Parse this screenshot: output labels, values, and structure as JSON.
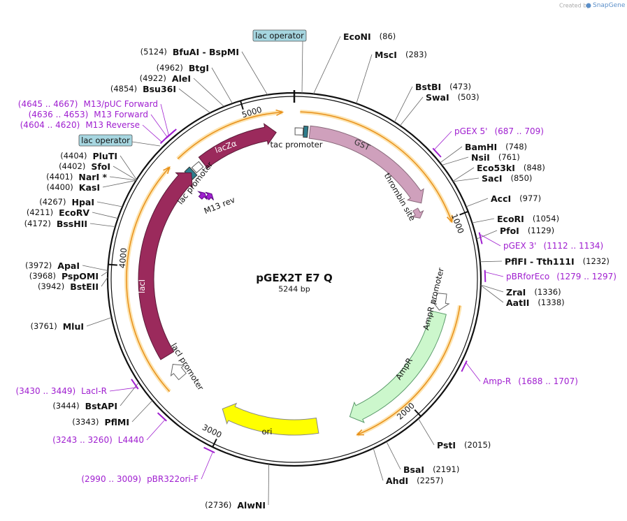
{
  "watermark": {
    "prefix": "Created by",
    "brand": "SnapGene"
  },
  "plasmid": {
    "name": "pGEX2T E7 Q",
    "length": "5244 bp"
  },
  "ruler": {
    "ticks": [
      1000,
      2000,
      3000,
      4000,
      5000
    ]
  },
  "sites": [
    {
      "name": "EcoNI",
      "position": "(86)"
    },
    {
      "name": "MscI",
      "position": "(283)"
    },
    {
      "name": "BstBI",
      "position": "(473)"
    },
    {
      "name": "SwaI",
      "position": "(503)"
    },
    {
      "name": "BamHI",
      "position": "(748)"
    },
    {
      "name": "NsiI",
      "position": "(761)"
    },
    {
      "name": "Eco53kI",
      "position": "(848)"
    },
    {
      "name": "SacI",
      "position": "(850)"
    },
    {
      "name": "AccI",
      "position": "(977)"
    },
    {
      "name": "EcoRI",
      "position": "(1054)"
    },
    {
      "name": "PfoI",
      "position": "(1129)"
    },
    {
      "name": "PflFI - Tth111I",
      "position": "(1232)"
    },
    {
      "name": "ZraI",
      "position": "(1336)"
    },
    {
      "name": "AatII",
      "position": "(1338)"
    },
    {
      "name": "PstI",
      "position": "(2015)"
    },
    {
      "name": "BsaI",
      "position": "(2191)"
    },
    {
      "name": "AhdI",
      "position": "(2257)"
    },
    {
      "name": "AlwNI",
      "position": "(2736)"
    },
    {
      "name": "PflMI",
      "position": "(3343)"
    },
    {
      "name": "BstAPI",
      "position": "(3444)"
    },
    {
      "name": "MluI",
      "position": "(3761)"
    },
    {
      "name": "BstEII",
      "position": "(3942)"
    },
    {
      "name": "PspOMI",
      "position": "(3968)"
    },
    {
      "name": "ApaI",
      "position": "(3972)"
    },
    {
      "name": "BssHII",
      "position": "(4172)"
    },
    {
      "name": "EcoRV",
      "position": "(4211)"
    },
    {
      "name": "HpaI",
      "position": "(4267)"
    },
    {
      "name": "KasI",
      "position": "(4400)"
    },
    {
      "name": "NarI *",
      "position": "(4401)"
    },
    {
      "name": "SfoI",
      "position": "(4402)"
    },
    {
      "name": "PluTI",
      "position": "(4404)"
    },
    {
      "name": "Bsu36I",
      "position": "(4854)"
    },
    {
      "name": "AleI",
      "position": "(4922)"
    },
    {
      "name": "BtgI",
      "position": "(4962)"
    },
    {
      "name": "BfuAI - BspMI",
      "position": "(5124)"
    }
  ],
  "primers": [
    {
      "name": "pGEX 5'",
      "range": "(687 .. 709)"
    },
    {
      "name": "pGEX 3'",
      "range": "(1112 .. 1134)"
    },
    {
      "name": "pBRforEco",
      "range": "(1279 .. 1297)"
    },
    {
      "name": "Amp-R",
      "range": "(1688 .. 1707)"
    },
    {
      "name": "pBR322ori-F",
      "range": "(2990 .. 3009)"
    },
    {
      "name": "L4440",
      "range": "(3243 .. 3260)"
    },
    {
      "name": "LacI-R",
      "range": "(3430 .. 3449)"
    },
    {
      "name": "M13 Reverse",
      "range": "(4604 .. 4620)"
    },
    {
      "name": "M13 Forward",
      "range": "(4636 .. 4653)"
    },
    {
      "name": "M13/pUC Forward",
      "range": "(4645 .. 4667)"
    }
  ],
  "features": [
    "tac promoter",
    "GST",
    "thrombin site",
    "lacZα",
    "lac promoter",
    "M13 rev",
    "lac operator",
    "lac operator",
    "lacI",
    "lacI promoter",
    "AmpR promoter",
    "AmpR",
    "ori"
  ]
}
